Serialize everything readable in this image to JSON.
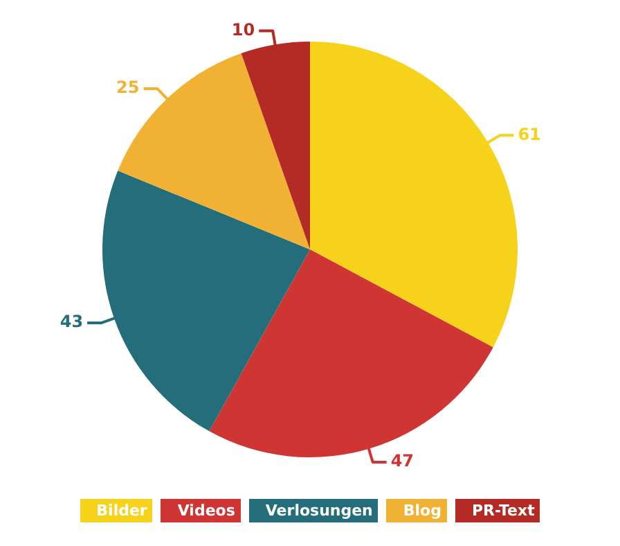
{
  "chart_data": {
    "type": "pie",
    "categories": [
      "Bilder",
      "Videos",
      "Verlosungen",
      "Blog",
      "PR-Text"
    ],
    "values": [
      61,
      47,
      43,
      25,
      10
    ],
    "colors": [
      "#f6d21a",
      "#cf3532",
      "#246d7a",
      "#f1b233",
      "#b42a24"
    ],
    "data_labels": true,
    "legend": "bottom"
  }
}
